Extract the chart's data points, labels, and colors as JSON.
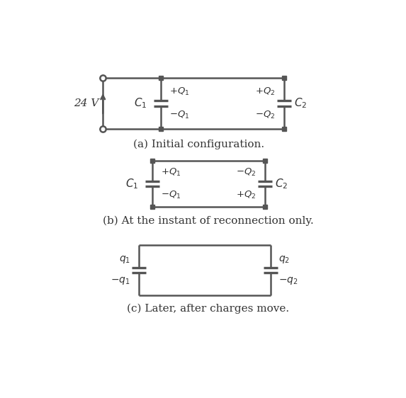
{
  "bg_color": "#ffffff",
  "line_color": "#555555",
  "text_color": "#333333",
  "fig_width": 5.73,
  "fig_height": 5.62,
  "caption_a": "(a) Initial configuration.",
  "caption_b": "(b) At the instant of reconnection only.",
  "caption_c": "(c) Later, after charges move."
}
